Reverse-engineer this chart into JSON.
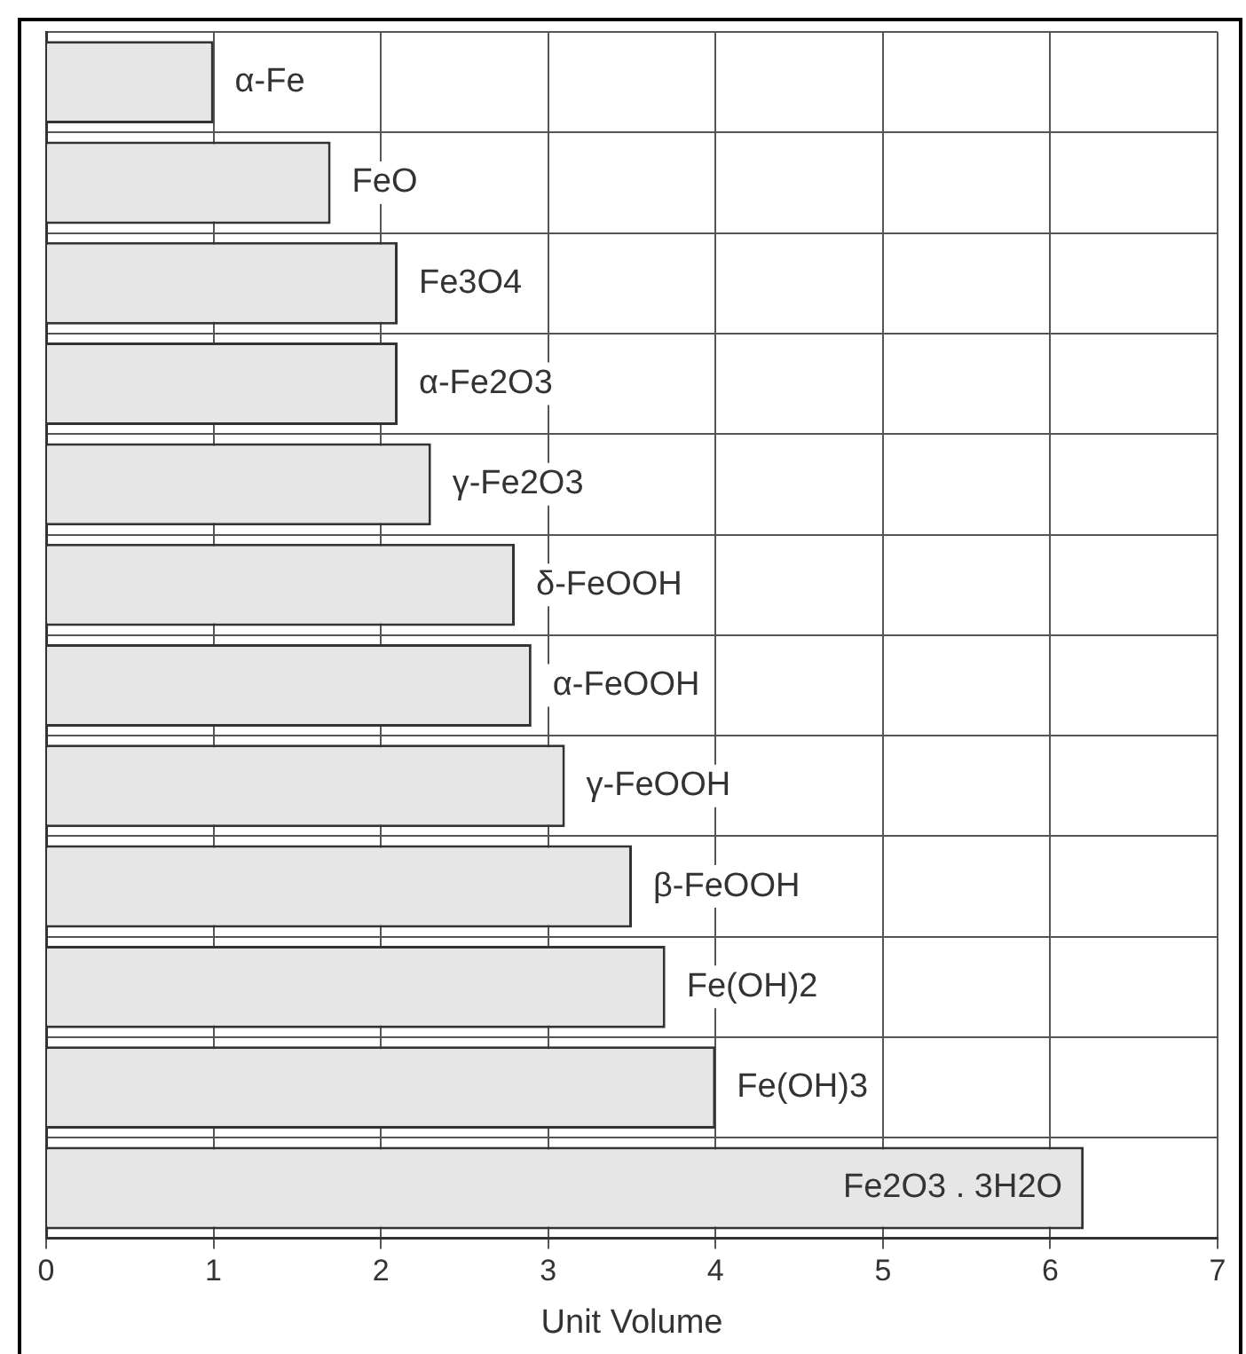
{
  "chart_data": {
    "type": "bar",
    "orientation": "horizontal",
    "xlabel": "Unit Volume",
    "categories": [
      "α-Fe",
      "FeO",
      "Fe3O4",
      "α-Fe2O3",
      "γ-Fe2O3",
      "δ-FeOOH",
      "α-FeOOH",
      "γ-FeOOH",
      "β-FeOOH",
      "Fe(OH)2",
      "Fe(OH)3",
      "Fe2O3 . 3H2O"
    ],
    "values": [
      1.0,
      1.7,
      2.1,
      2.1,
      2.3,
      2.8,
      2.9,
      3.1,
      3.5,
      3.7,
      4.0,
      6.2
    ],
    "color": "#e6e6e6",
    "xlim": [
      0,
      7
    ],
    "xticks": [
      0,
      1,
      2,
      3,
      4,
      5,
      6,
      7
    ],
    "grid": true,
    "tick_labels": "x"
  }
}
